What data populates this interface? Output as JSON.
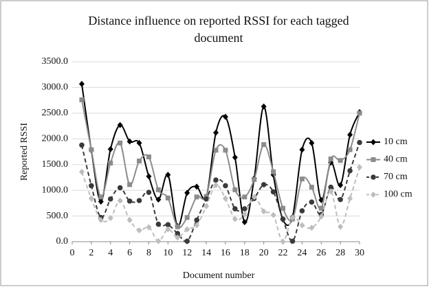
{
  "chart_data": {
    "type": "line",
    "title": "Distance influence on reported RSSI for each tagged document",
    "xlabel": "Document number",
    "ylabel": "Reported RSSI",
    "x": [
      1,
      2,
      3,
      4,
      5,
      6,
      7,
      8,
      9,
      10,
      11,
      12,
      13,
      14,
      15,
      16,
      17,
      18,
      19,
      20,
      21,
      22,
      23,
      24,
      25,
      26,
      27,
      28,
      29,
      30
    ],
    "xlim": [
      0,
      30
    ],
    "xticks": [
      0,
      2,
      4,
      6,
      8,
      10,
      12,
      14,
      16,
      18,
      20,
      22,
      24,
      26,
      28,
      30
    ],
    "ylim": [
      0,
      3500
    ],
    "yticks": [
      {
        "value": 0,
        "label": "0.0"
      },
      {
        "value": 500,
        "label": "500.0"
      },
      {
        "value": 1000,
        "label": "1000.0"
      },
      {
        "value": 1500,
        "label": "1500.0"
      },
      {
        "value": 2000,
        "label": "2000.0"
      },
      {
        "value": 2500,
        "label": "2500.0"
      },
      {
        "value": 3000,
        "label": "3000.0"
      },
      {
        "value": 3500,
        "label": "3500.0"
      }
    ],
    "grid": true,
    "smooth": true,
    "legend": "right",
    "series": [
      {
        "name": "10 cm",
        "color": "#000000",
        "style": "solid",
        "marker": "diamond",
        "values": [
          3070,
          1780,
          780,
          1800,
          2270,
          1950,
          1920,
          1270,
          820,
          1300,
          300,
          950,
          1070,
          870,
          2120,
          2430,
          1640,
          380,
          1230,
          2630,
          1300,
          430,
          480,
          1790,
          1920,
          810,
          1540,
          1100,
          2080,
          2520
        ]
      },
      {
        "name": "40 cm",
        "color": "#8c8c8c",
        "style": "solid",
        "marker": "square",
        "values": [
          2760,
          1790,
          870,
          1530,
          1920,
          1110,
          1570,
          1650,
          1010,
          850,
          290,
          470,
          870,
          880,
          1780,
          1780,
          1010,
          870,
          1210,
          1890,
          1360,
          650,
          440,
          1220,
          1060,
          650,
          1610,
          1580,
          1790,
          2500
        ]
      },
      {
        "name": "70 cm",
        "color": "#3a3a3a",
        "style": "dashed",
        "marker": "circle",
        "values": [
          1880,
          1090,
          470,
          830,
          1050,
          790,
          800,
          960,
          340,
          330,
          160,
          10,
          420,
          830,
          1200,
          1090,
          640,
          640,
          840,
          1110,
          970,
          440,
          10,
          600,
          770,
          530,
          1060,
          820,
          1380,
          1930
        ]
      },
      {
        "name": "100 cm",
        "color": "#bdbdbd",
        "style": "dashed",
        "marker": "diamond",
        "values": [
          1360,
          840,
          420,
          460,
          800,
          420,
          220,
          280,
          10,
          240,
          80,
          240,
          320,
          690,
          1100,
          840,
          440,
          530,
          870,
          590,
          520,
          0,
          470,
          320,
          270,
          490,
          980,
          290,
          840,
          1450
        ]
      }
    ]
  }
}
